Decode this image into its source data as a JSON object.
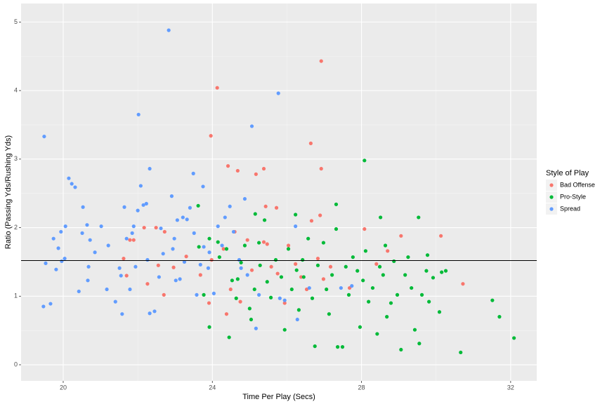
{
  "chart_data": {
    "type": "scatter",
    "x_label": "Time Per Play (Secs)",
    "y_label": "Ratio (Passing Yds/Rushing Yds)",
    "legend_title": "Style of Play",
    "legend_position": "right",
    "grid": true,
    "hline": 1.52,
    "xlim": [
      18.87,
      32.7
    ],
    "xticks": [
      20,
      24,
      28,
      32
    ],
    "ylim": [
      -0.235,
      5.27
    ],
    "yticks": [
      0,
      1,
      2,
      3,
      4,
      5
    ],
    "series": [
      {
        "name": "Bad Offense",
        "color": "#F8766D",
        "x": [
          26.92,
          24.13,
          23.96,
          26.64,
          24.42,
          24.68,
          25.38,
          26.92,
          25.17,
          25.43,
          25.72,
          26.89,
          22.17,
          22.49,
          22.72,
          21.79,
          21.89,
          21.62,
          21.7,
          22.26,
          22.55,
          22.7,
          22.96,
          23.3,
          23.68,
          23.91,
          23.98,
          24.3,
          24.38,
          24.49,
          24.6,
          24.75,
          24.94,
          25.06,
          25.38,
          25.47,
          25.58,
          25.75,
          25.94,
          26.04,
          26.38,
          26.53,
          26.66,
          26.83,
          26.98,
          27.17,
          27.68,
          28.08,
          28.4,
          28.7,
          29.06,
          30.13,
          30.72,
          26.23
        ],
        "values": [
          4.43,
          4.04,
          3.34,
          3.23,
          2.9,
          2.83,
          2.86,
          2.86,
          2.78,
          2.31,
          2.29,
          2.18,
          2.0,
          2.0,
          1.94,
          1.82,
          1.82,
          1.55,
          1.3,
          1.18,
          1.45,
          1.02,
          1.42,
          1.58,
          1.31,
          0.9,
          1.53,
          1.69,
          0.74,
          1.1,
          1.94,
          0.92,
          1.82,
          1.38,
          1.79,
          1.76,
          1.43,
          1.33,
          0.9,
          1.74,
          1.28,
          1.1,
          2.1,
          1.55,
          1.25,
          1.43,
          1.12,
          1.98,
          1.47,
          1.66,
          1.88,
          1.88,
          1.18,
          1.47
        ]
      },
      {
        "name": "Pro-Style",
        "color": "#00BA38",
        "x": [
          28.08,
          27.32,
          28.51,
          29.53,
          25.15,
          23.62,
          23.92,
          24.19,
          24.38,
          24.53,
          24.64,
          24.77,
          24.87,
          25.0,
          25.04,
          25.13,
          25.28,
          25.4,
          25.47,
          25.57,
          25.7,
          25.85,
          25.94,
          26.04,
          26.13,
          26.26,
          26.32,
          26.42,
          26.45,
          26.57,
          26.68,
          26.75,
          26.83,
          26.98,
          27.06,
          27.13,
          27.21,
          27.32,
          27.36,
          27.49,
          27.58,
          27.66,
          27.77,
          27.89,
          27.96,
          28.04,
          28.11,
          28.19,
          28.3,
          28.42,
          28.49,
          28.58,
          28.68,
          28.79,
          28.87,
          28.96,
          29.06,
          29.17,
          29.25,
          29.34,
          29.43,
          29.55,
          29.62,
          29.74,
          29.81,
          29.92,
          30.09,
          30.26,
          30.66,
          31.51,
          31.7,
          32.09,
          23.92,
          24.45,
          23.77,
          23.64,
          24.15,
          24.68,
          25.25,
          26.23,
          29.77,
          30.15,
          28.64
        ],
        "values": [
          2.98,
          2.34,
          2.15,
          2.15,
          2.2,
          2.32,
          1.84,
          1.57,
          1.69,
          1.23,
          0.97,
          1.49,
          1.74,
          0.82,
          0.66,
          1.1,
          1.45,
          2.11,
          1.21,
          0.98,
          1.53,
          1.28,
          0.51,
          1.69,
          1.1,
          1.38,
          0.8,
          1.53,
          1.28,
          1.84,
          0.97,
          0.27,
          1.45,
          1.78,
          1.1,
          0.74,
          1.31,
          1.98,
          0.26,
          0.26,
          1.43,
          1.02,
          1.57,
          1.37,
          0.55,
          1.23,
          1.66,
          0.92,
          1.12,
          0.45,
          1.43,
          1.31,
          0.7,
          0.9,
          1.51,
          1.02,
          0.22,
          1.31,
          1.57,
          1.12,
          0.51,
          0.31,
          1.02,
          1.37,
          0.92,
          1.27,
          0.77,
          1.37,
          0.18,
          0.94,
          0.7,
          0.39,
          0.55,
          0.4,
          1.02,
          1.72,
          1.79,
          1.25,
          1.78,
          2.19,
          1.6,
          1.35,
          1.74
        ]
      },
      {
        "name": "Spread",
        "color": "#619CFF",
        "x": [
          19.49,
          19.47,
          19.66,
          19.53,
          19.74,
          19.81,
          19.87,
          19.94,
          19.96,
          20.04,
          20.06,
          20.15,
          20.23,
          20.32,
          20.42,
          20.53,
          20.51,
          20.64,
          20.68,
          20.66,
          20.72,
          20.85,
          21.02,
          21.17,
          21.21,
          21.4,
          21.51,
          21.55,
          21.58,
          21.64,
          21.7,
          21.79,
          21.85,
          21.89,
          21.94,
          22.0,
          22.02,
          22.08,
          22.15,
          22.23,
          22.26,
          22.32,
          22.32,
          22.45,
          22.57,
          22.62,
          22.68,
          22.83,
          22.91,
          22.94,
          22.98,
          23.02,
          23.06,
          23.13,
          23.21,
          23.25,
          23.32,
          23.4,
          23.49,
          23.51,
          23.58,
          23.68,
          23.75,
          23.77,
          23.89,
          23.92,
          24.04,
          24.15,
          24.26,
          24.34,
          24.47,
          24.57,
          24.72,
          24.77,
          24.87,
          24.94,
          25.06,
          25.17,
          25.25,
          25.81,
          25.77,
          25.94,
          26.23,
          26.28,
          26.6,
          27.45,
          27.74
        ],
        "values": [
          3.33,
          0.85,
          0.89,
          1.48,
          1.84,
          1.39,
          1.7,
          1.94,
          1.51,
          1.55,
          2.02,
          2.72,
          2.64,
          2.59,
          1.07,
          2.3,
          1.92,
          2.04,
          1.43,
          1.23,
          1.82,
          1.64,
          2.02,
          1.1,
          1.74,
          0.92,
          1.41,
          1.3,
          0.74,
          2.3,
          1.84,
          1.1,
          1.92,
          2.02,
          1.43,
          2.25,
          3.65,
          2.61,
          2.33,
          2.35,
          1.53,
          2.86,
          0.75,
          0.78,
          1.28,
          1.99,
          1.62,
          4.88,
          2.46,
          1.69,
          1.84,
          1.23,
          2.11,
          1.25,
          2.15,
          1.5,
          2.12,
          2.29,
          2.79,
          1.92,
          1.02,
          1.46,
          2.6,
          1.72,
          1.41,
          1.64,
          1.04,
          2.02,
          1.74,
          2.15,
          2.31,
          1.94,
          1.53,
          1.41,
          2.42,
          1.31,
          3.48,
          0.53,
          1.02,
          0.97,
          3.96,
          0.94,
          2.02,
          0.66,
          1.12,
          1.12,
          1.15
        ]
      }
    ]
  }
}
